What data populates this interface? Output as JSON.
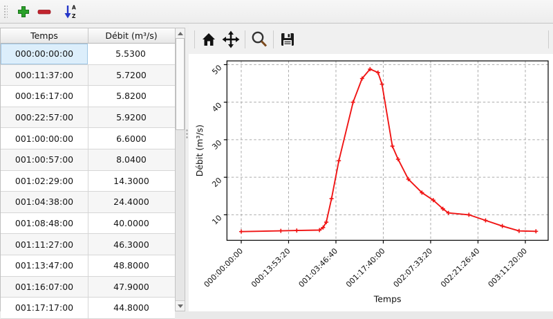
{
  "toolbar": {
    "add_tooltip": "add",
    "remove_tooltip": "remove",
    "sort_letters": [
      "A",
      "Z"
    ],
    "add_color": "#2aa12a",
    "remove_color": "#c2242e",
    "sort_arrow_color": "#2436c8"
  },
  "table": {
    "columns": [
      "Temps",
      "Débit (m³/s)"
    ],
    "selected_row": 0,
    "selected_col": 0,
    "rows": [
      [
        "000:00:00:00",
        "5.5300"
      ],
      [
        "000:11:37:00",
        "5.7200"
      ],
      [
        "000:16:17:00",
        "5.8200"
      ],
      [
        "000:22:57:00",
        "5.9200"
      ],
      [
        "001:00:00:00",
        "6.6000"
      ],
      [
        "001:00:57:00",
        "8.0400"
      ],
      [
        "001:02:29:00",
        "14.3000"
      ],
      [
        "001:04:38:00",
        "24.4000"
      ],
      [
        "001:08:48:00",
        "40.0000"
      ],
      [
        "001:11:27:00",
        "46.3000"
      ],
      [
        "001:13:47:00",
        "48.8000"
      ],
      [
        "001:16:07:00",
        "47.9000"
      ],
      [
        "001:17:17:00",
        "44.8000"
      ]
    ]
  },
  "chart_toolbar": {
    "icons": [
      "home-icon",
      "pan-icon",
      "zoom-icon",
      "save-icon"
    ]
  },
  "chart_data": {
    "type": "line",
    "xlabel": "Temps",
    "ylabel": "Débit (m³/s)",
    "line_color": "#f01414",
    "marker": "+",
    "grid": true,
    "grid_color": "#ababab",
    "xlim_seconds": [
      -15100,
      324100
    ],
    "ylim": [
      3.2,
      51.0
    ],
    "x_ticks": [
      {
        "s": 0,
        "label": "000:00:00:00"
      },
      {
        "s": 50000,
        "label": "000:13:53:20"
      },
      {
        "s": 100000,
        "label": "001:03:46:40"
      },
      {
        "s": 150000,
        "label": "001:17:40:00"
      },
      {
        "s": 200000,
        "label": "002:07:33:20"
      },
      {
        "s": 250000,
        "label": "002:21:26:40"
      },
      {
        "s": 300000,
        "label": "003:11:20:00"
      }
    ],
    "y_ticks": [
      10,
      20,
      30,
      40,
      50
    ],
    "points": [
      {
        "t": "000:00:00:00",
        "s": 0,
        "q": 5.53
      },
      {
        "t": "000:11:37:00",
        "s": 41820,
        "q": 5.72
      },
      {
        "t": "000:16:17:00",
        "s": 58620,
        "q": 5.82
      },
      {
        "t": "000:22:57:00",
        "s": 82620,
        "q": 5.92
      },
      {
        "t": "001:00:00:00",
        "s": 86400,
        "q": 6.6
      },
      {
        "t": "001:00:57:00",
        "s": 89820,
        "q": 8.04
      },
      {
        "t": "001:02:29:00",
        "s": 95340,
        "q": 14.3
      },
      {
        "t": "001:04:38:00",
        "s": 103080,
        "q": 24.4
      },
      {
        "t": "001:08:48:00",
        "s": 118080,
        "q": 40.0
      },
      {
        "t": "001:11:27:00",
        "s": 127620,
        "q": 46.3
      },
      {
        "t": "001:13:47:00",
        "s": 136020,
        "q": 48.8
      },
      {
        "t": "001:16:07:00",
        "s": 144420,
        "q": 47.9
      },
      {
        "t": "001:17:17:00",
        "s": 148620,
        "q": 44.8
      },
      {
        "s": 159600,
        "q": 28.3
      },
      {
        "s": 165600,
        "q": 24.8
      },
      {
        "s": 176400,
        "q": 19.5
      },
      {
        "s": 190800,
        "q": 15.9
      },
      {
        "s": 202800,
        "q": 13.9
      },
      {
        "s": 212900,
        "q": 11.6
      },
      {
        "s": 218800,
        "q": 10.5
      },
      {
        "s": 240400,
        "q": 10.0
      },
      {
        "s": 258000,
        "q": 8.5
      },
      {
        "s": 275700,
        "q": 7.0
      },
      {
        "s": 293400,
        "q": 5.7
      },
      {
        "s": 311200,
        "q": 5.6
      }
    ]
  }
}
